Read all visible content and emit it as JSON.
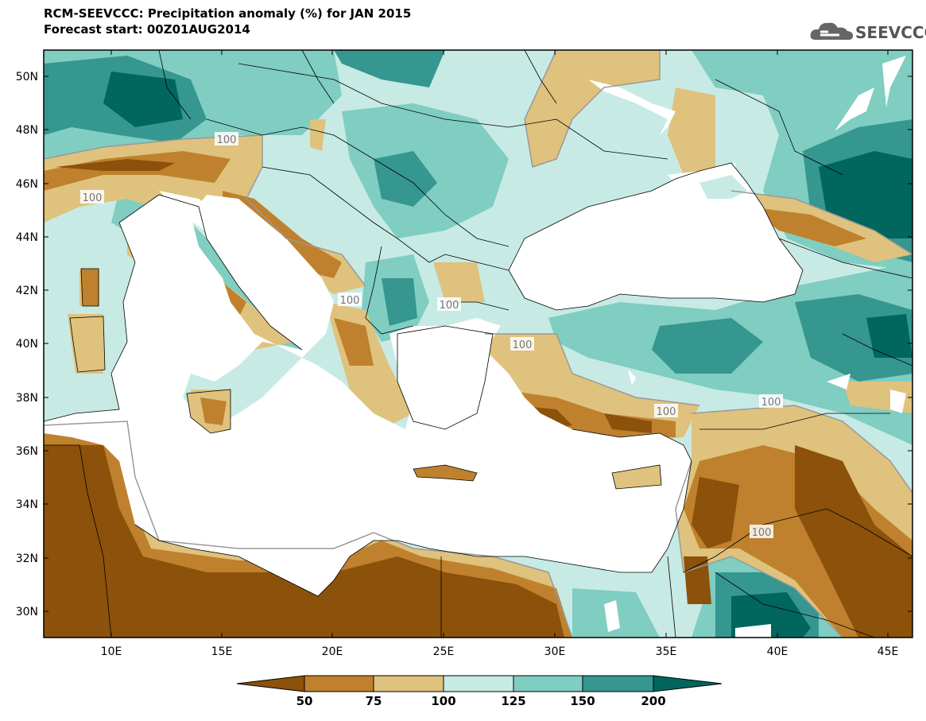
{
  "header": {
    "title": "RCM-SEEVCCC: Precipitation anomaly (%) for JAN 2015",
    "subtitle": "Forecast start: 00Z01AUG2014",
    "logo_text": "SEEVCCC"
  },
  "axes": {
    "lat_labels": [
      "50N",
      "48N",
      "46N",
      "44N",
      "42N",
      "40N",
      "38N",
      "36N",
      "34N",
      "32N",
      "30N"
    ],
    "lon_labels": [
      "10E",
      "15E",
      "20E",
      "25E",
      "30E",
      "35E",
      "40E",
      "45E"
    ]
  },
  "contour_labels": [
    "100",
    "100",
    "100",
    "100",
    "100",
    "100",
    "100",
    "100"
  ],
  "colorbar": {
    "labels": [
      "50",
      "75",
      "100",
      "125",
      "150",
      "200"
    ],
    "colors": [
      "#8c510a",
      "#bf812d",
      "#dfc27d",
      "#c7eae5",
      "#80cdc1",
      "#35978f",
      "#01665e"
    ]
  },
  "palette": {
    "sea": "#ffffff",
    "border": "#000000",
    "contour_line": "#999999"
  }
}
